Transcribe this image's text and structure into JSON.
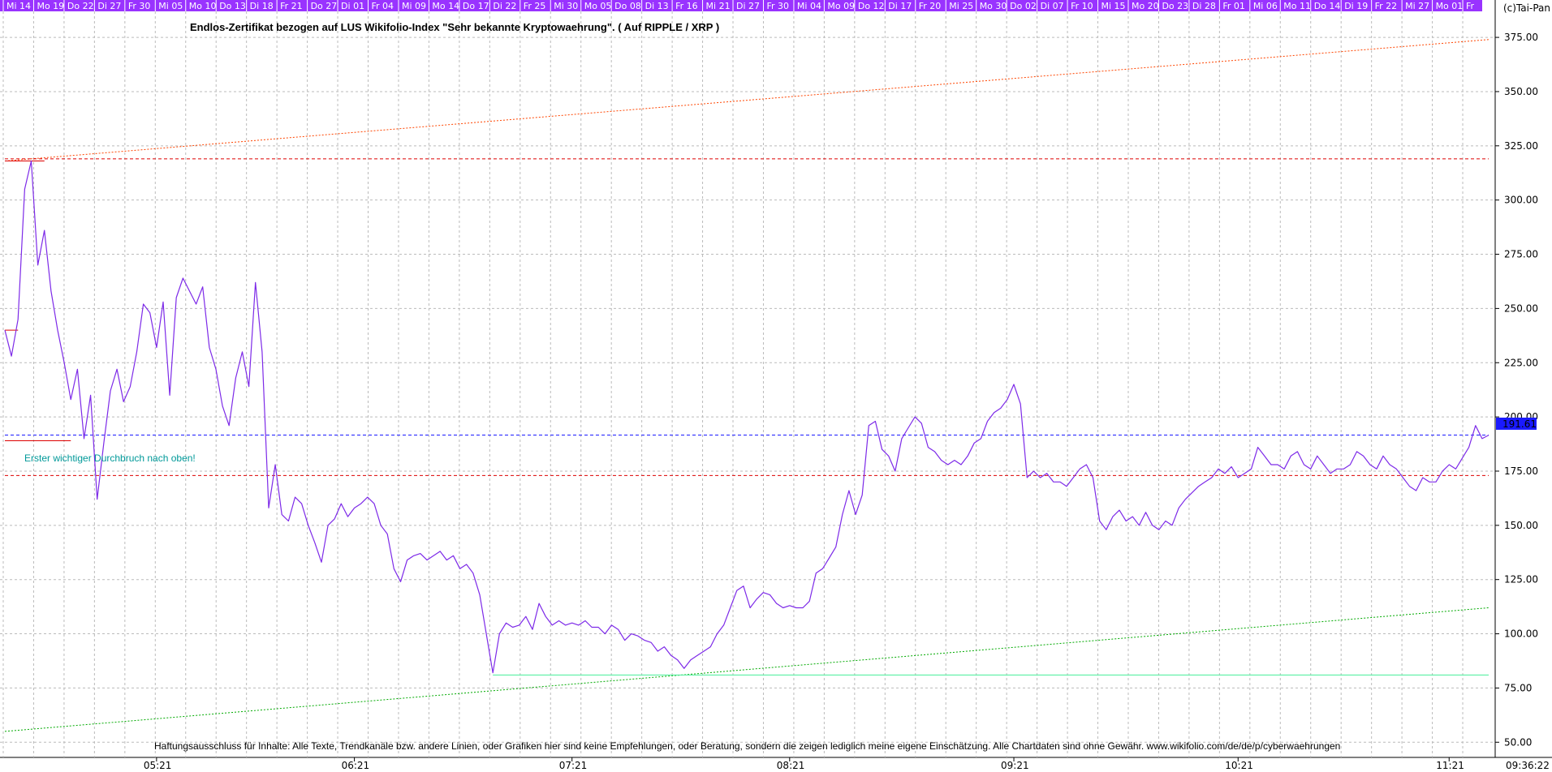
{
  "chart_data": {
    "type": "line",
    "title": "Endlos-Zertifikat bezogen auf LUS Wikifolio-Index \"Sehr bekannte Kryptowaehrung\". ( Auf RIPPLE / XRP )",
    "copyright": "(c)Tai-Pan",
    "disclaimer": "Haftungsausschluss für Inhalte: Alle Texte, Trendkanäle bzw. andere Linien, oder Grafiken hier sind keine Empfehlungen, oder Beratung, sondern die zeigen lediglich meine eigene Einschätzung. Alle Chartdaten sind ohne Gewähr.  www.wikifolio.com/de/de/p/cyberwaehrungen",
    "annotation": "Erster wichtiger Durchbruch nach oben!",
    "last_value_label": "191.61",
    "time_label": "09:36:22",
    "ylim": [
      43,
      387
    ],
    "y_ticks": [
      "375.00",
      "350.00",
      "325.00",
      "300.00",
      "275.00",
      "250.00",
      "225.00",
      "200.00",
      "175.00",
      "150.00",
      "125.00",
      "100.00",
      "75.00",
      "50.00"
    ],
    "y_tick_values": [
      375,
      350,
      325,
      300,
      275,
      250,
      225,
      200,
      175,
      150,
      125,
      100,
      75,
      50
    ],
    "x_range": [
      0,
      225
    ],
    "month_labels": [
      {
        "label": "05:21",
        "t": 23
      },
      {
        "label": "06:21",
        "t": 53
      },
      {
        "label": "07:21",
        "t": 86
      },
      {
        "label": "08:21",
        "t": 119
      },
      {
        "label": "09:21",
        "t": 153
      },
      {
        "label": "10:21",
        "t": 187
      },
      {
        "label": "11:21",
        "t": 219
      }
    ],
    "day_labels": [
      "Mi 14",
      "Mo 19",
      "Do 22",
      "Di 27",
      "Fr 30",
      "Mi 05",
      "Mo 10",
      "Do 13",
      "Di 18",
      "Fr 21",
      "Do 27",
      "Di 01",
      "Fr 04",
      "Mi 09",
      "Mo 14",
      "Do 17",
      "Di 22",
      "Fr 25",
      "Mi 30",
      "Mo 05",
      "Do 08",
      "Di 13",
      "Fr 16",
      "Mi 21",
      "Di 27",
      "Fr 30",
      "Mi 04",
      "Mo 09",
      "Do 12",
      "Di 17",
      "Fr 20",
      "Mi 25",
      "Mo 30",
      "Do 02",
      "Di 07",
      "Fr 10",
      "Mi 15",
      "Mo 20",
      "Do 23",
      "Di 28",
      "Fr 01",
      "Mi 06",
      "Mo 11",
      "Do 14",
      "Di 19",
      "Fr 22",
      "Mi 27",
      "Mo 01",
      "Fr"
    ],
    "series": [
      {
        "color": "#7d2ae8",
        "points": [
          [
            0,
            240
          ],
          [
            1,
            228
          ],
          [
            2,
            245
          ],
          [
            3,
            305
          ],
          [
            4,
            318
          ],
          [
            5,
            270
          ],
          [
            6,
            286
          ],
          [
            7,
            258
          ],
          [
            8,
            240
          ],
          [
            9,
            225
          ],
          [
            10,
            208
          ],
          [
            11,
            222
          ],
          [
            12,
            190
          ],
          [
            13,
            210
          ],
          [
            14,
            162
          ],
          [
            15,
            188
          ],
          [
            16,
            212
          ],
          [
            17,
            222
          ],
          [
            18,
            207
          ],
          [
            19,
            214
          ],
          [
            20,
            230
          ],
          [
            21,
            252
          ],
          [
            22,
            248
          ],
          [
            23,
            232
          ],
          [
            24,
            253
          ],
          [
            25,
            210
          ],
          [
            26,
            255
          ],
          [
            27,
            264
          ],
          [
            28,
            258
          ],
          [
            29,
            252
          ],
          [
            30,
            260
          ],
          [
            31,
            232
          ],
          [
            32,
            222
          ],
          [
            33,
            205
          ],
          [
            34,
            196
          ],
          [
            35,
            218
          ],
          [
            36,
            230
          ],
          [
            37,
            214
          ],
          [
            38,
            262
          ],
          [
            39,
            230
          ],
          [
            40,
            158
          ],
          [
            41,
            178
          ],
          [
            42,
            155
          ],
          [
            43,
            152
          ],
          [
            44,
            163
          ],
          [
            45,
            160
          ],
          [
            46,
            150
          ],
          [
            47,
            142
          ],
          [
            48,
            133
          ],
          [
            49,
            150
          ],
          [
            50,
            153
          ],
          [
            51,
            160
          ],
          [
            52,
            154
          ],
          [
            53,
            158
          ],
          [
            54,
            160
          ],
          [
            55,
            163
          ],
          [
            56,
            160
          ],
          [
            57,
            150
          ],
          [
            58,
            146
          ],
          [
            59,
            130
          ],
          [
            60,
            124
          ],
          [
            61,
            134
          ],
          [
            62,
            136
          ],
          [
            63,
            137
          ],
          [
            64,
            134
          ],
          [
            65,
            136
          ],
          [
            66,
            138
          ],
          [
            67,
            134
          ],
          [
            68,
            136
          ],
          [
            69,
            130
          ],
          [
            70,
            132
          ],
          [
            71,
            128
          ],
          [
            72,
            118
          ],
          [
            73,
            100
          ],
          [
            74,
            82
          ],
          [
            75,
            100
          ],
          [
            76,
            105
          ],
          [
            77,
            103
          ],
          [
            78,
            104
          ],
          [
            79,
            108
          ],
          [
            80,
            102
          ],
          [
            81,
            114
          ],
          [
            82,
            108
          ],
          [
            83,
            104
          ],
          [
            84,
            106
          ],
          [
            85,
            104
          ],
          [
            86,
            105
          ],
          [
            87,
            104
          ],
          [
            88,
            106
          ],
          [
            89,
            103
          ],
          [
            90,
            103
          ],
          [
            91,
            100
          ],
          [
            92,
            104
          ],
          [
            93,
            102
          ],
          [
            94,
            97
          ],
          [
            95,
            100
          ],
          [
            96,
            99
          ],
          [
            97,
            97
          ],
          [
            98,
            96
          ],
          [
            99,
            92
          ],
          [
            100,
            94
          ],
          [
            101,
            90
          ],
          [
            102,
            88
          ],
          [
            103,
            84
          ],
          [
            104,
            88
          ],
          [
            105,
            90
          ],
          [
            106,
            92
          ],
          [
            107,
            94
          ],
          [
            108,
            100
          ],
          [
            109,
            104
          ],
          [
            110,
            112
          ],
          [
            111,
            120
          ],
          [
            112,
            122
          ],
          [
            113,
            112
          ],
          [
            114,
            116
          ],
          [
            115,
            119
          ],
          [
            116,
            118
          ],
          [
            117,
            114
          ],
          [
            118,
            112
          ],
          [
            119,
            113
          ],
          [
            120,
            112
          ],
          [
            121,
            112
          ],
          [
            122,
            115
          ],
          [
            123,
            128
          ],
          [
            124,
            130
          ],
          [
            125,
            135
          ],
          [
            126,
            140
          ],
          [
            127,
            155
          ],
          [
            128,
            166
          ],
          [
            129,
            155
          ],
          [
            130,
            164
          ],
          [
            131,
            196
          ],
          [
            132,
            198
          ],
          [
            133,
            185
          ],
          [
            134,
            182
          ],
          [
            135,
            175
          ],
          [
            136,
            190
          ],
          [
            137,
            195
          ],
          [
            138,
            200
          ],
          [
            139,
            197
          ],
          [
            140,
            186
          ],
          [
            141,
            184
          ],
          [
            142,
            180
          ],
          [
            143,
            178
          ],
          [
            144,
            180
          ],
          [
            145,
            178
          ],
          [
            146,
            182
          ],
          [
            147,
            188
          ],
          [
            148,
            190
          ],
          [
            149,
            198
          ],
          [
            150,
            202
          ],
          [
            151,
            204
          ],
          [
            152,
            208
          ],
          [
            153,
            215
          ],
          [
            154,
            206
          ],
          [
            155,
            172
          ],
          [
            156,
            175
          ],
          [
            157,
            172
          ],
          [
            158,
            174
          ],
          [
            159,
            170
          ],
          [
            160,
            170
          ],
          [
            161,
            168
          ],
          [
            162,
            172
          ],
          [
            163,
            176
          ],
          [
            164,
            178
          ],
          [
            165,
            172
          ],
          [
            166,
            152
          ],
          [
            167,
            148
          ],
          [
            168,
            154
          ],
          [
            169,
            157
          ],
          [
            170,
            152
          ],
          [
            171,
            154
          ],
          [
            172,
            150
          ],
          [
            173,
            156
          ],
          [
            174,
            150
          ],
          [
            175,
            148
          ],
          [
            176,
            152
          ],
          [
            177,
            150
          ],
          [
            178,
            158
          ],
          [
            179,
            162
          ],
          [
            180,
            165
          ],
          [
            181,
            168
          ],
          [
            182,
            170
          ],
          [
            183,
            172
          ],
          [
            184,
            176
          ],
          [
            185,
            174
          ],
          [
            186,
            177
          ],
          [
            187,
            172
          ],
          [
            188,
            174
          ],
          [
            189,
            176
          ],
          [
            190,
            186
          ],
          [
            191,
            182
          ],
          [
            192,
            178
          ],
          [
            193,
            178
          ],
          [
            194,
            176
          ],
          [
            195,
            182
          ],
          [
            196,
            184
          ],
          [
            197,
            178
          ],
          [
            198,
            176
          ],
          [
            199,
            182
          ],
          [
            200,
            178
          ],
          [
            201,
            174
          ],
          [
            202,
            176
          ],
          [
            203,
            176
          ],
          [
            204,
            178
          ],
          [
            205,
            184
          ],
          [
            206,
            182
          ],
          [
            207,
            178
          ],
          [
            208,
            176
          ],
          [
            209,
            182
          ],
          [
            210,
            178
          ],
          [
            211,
            176
          ],
          [
            212,
            172
          ],
          [
            213,
            168
          ],
          [
            214,
            166
          ],
          [
            215,
            172
          ],
          [
            216,
            170
          ],
          [
            217,
            170
          ],
          [
            218,
            175
          ],
          [
            219,
            178
          ],
          [
            220,
            176
          ],
          [
            221,
            181
          ],
          [
            222,
            186
          ],
          [
            223,
            196
          ],
          [
            224,
            190
          ],
          [
            225,
            191.61
          ]
        ]
      }
    ],
    "reference_lines": [
      {
        "color": "#ff4500",
        "style": "dotted",
        "from": [
          0,
          318
        ],
        "to": [
          225,
          374
        ]
      },
      {
        "color": "#dd0000",
        "style": "dashed",
        "from": [
          0,
          319
        ],
        "to": [
          225,
          319
        ]
      },
      {
        "color": "#1a1aff",
        "style": "dashed",
        "from": [
          0,
          191.61
        ],
        "to": [
          225,
          191.61
        ]
      },
      {
        "color": "#dd0000",
        "style": "dashed",
        "from": [
          0,
          173
        ],
        "to": [
          225,
          173
        ]
      },
      {
        "color": "#00aa00",
        "style": "dotted",
        "from": [
          0,
          55
        ],
        "to": [
          225,
          112
        ]
      },
      {
        "color": "#44ee99",
        "style": "solid",
        "from": [
          74,
          81
        ],
        "to": [
          225,
          81
        ]
      },
      {
        "color": "#dd0000",
        "style": "solid",
        "from": [
          0,
          240
        ],
        "to": [
          2,
          240
        ]
      },
      {
        "color": "#dd0000",
        "style": "solid",
        "from": [
          0,
          189
        ],
        "to": [
          10,
          189
        ]
      },
      {
        "color": "#dd0000",
        "style": "solid",
        "from": [
          0,
          318
        ],
        "to": [
          6,
          318
        ]
      }
    ],
    "colors": {
      "line": "#7d2ae8",
      "header_bar": "#9933ff",
      "annotation": "#009999",
      "last_value_box": "#1a1aff"
    }
  }
}
